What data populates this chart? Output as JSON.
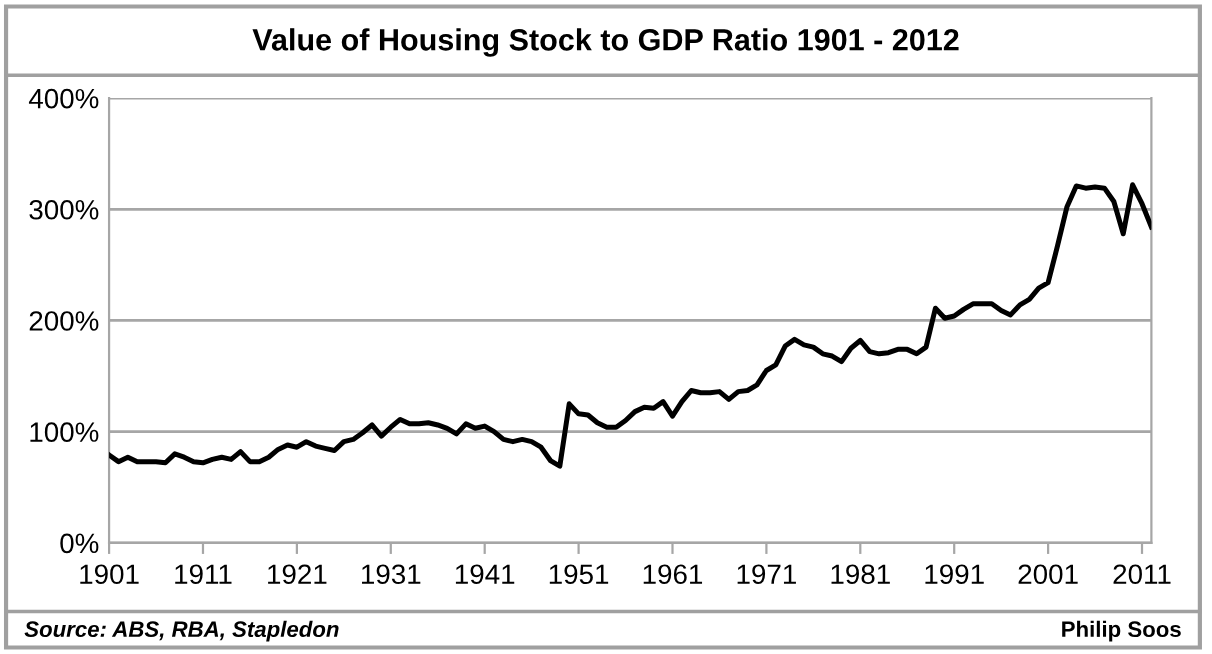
{
  "chart_data": {
    "type": "line",
    "title": "Value of Housing Stock to GDP Ratio 1901 - 2012",
    "x": [
      1901,
      1902,
      1903,
      1904,
      1905,
      1906,
      1907,
      1908,
      1909,
      1910,
      1911,
      1912,
      1913,
      1914,
      1915,
      1916,
      1917,
      1918,
      1919,
      1920,
      1921,
      1922,
      1923,
      1924,
      1925,
      1926,
      1927,
      1928,
      1929,
      1930,
      1931,
      1932,
      1933,
      1934,
      1935,
      1936,
      1937,
      1938,
      1939,
      1940,
      1941,
      1942,
      1943,
      1944,
      1945,
      1946,
      1947,
      1948,
      1949,
      1950,
      1951,
      1952,
      1953,
      1954,
      1955,
      1956,
      1957,
      1958,
      1959,
      1960,
      1961,
      1962,
      1963,
      1964,
      1965,
      1966,
      1967,
      1968,
      1969,
      1970,
      1971,
      1972,
      1973,
      1974,
      1975,
      1976,
      1977,
      1978,
      1979,
      1980,
      1981,
      1982,
      1983,
      1984,
      1985,
      1986,
      1987,
      1988,
      1989,
      1990,
      1991,
      1992,
      1993,
      1994,
      1995,
      1996,
      1997,
      1998,
      1999,
      2000,
      2001,
      2002,
      2003,
      2004,
      2005,
      2006,
      2007,
      2008,
      2009,
      2010,
      2011,
      2012
    ],
    "series": [
      {
        "color": "#000000",
        "values": [
          79,
          73,
          77,
          73,
          73,
          73,
          72,
          80,
          77,
          73,
          72,
          75,
          77,
          75,
          82,
          73,
          73,
          77,
          84,
          88,
          86,
          91,
          87,
          85,
          83,
          91,
          93,
          99,
          106,
          96,
          104,
          111,
          107,
          107,
          108,
          106,
          103,
          98,
          107,
          103,
          105,
          100,
          93,
          91,
          93,
          91,
          86,
          74,
          69,
          125,
          116,
          115,
          108,
          104,
          104,
          110,
          118,
          122,
          121,
          127,
          114,
          127,
          137,
          135,
          135,
          136,
          129,
          136,
          137,
          142,
          155,
          160,
          177,
          183,
          178,
          176,
          170,
          168,
          163,
          175,
          182,
          172,
          170,
          171,
          174,
          174,
          170,
          176,
          211,
          202,
          204,
          210,
          215,
          215,
          215,
          209,
          205,
          214,
          219,
          229,
          234,
          267,
          302,
          321,
          319,
          320,
          319,
          307,
          278,
          322,
          305,
          284
        ]
      }
    ],
    "xlim": [
      1901,
      2012
    ],
    "xticks": [
      1901,
      1911,
      1921,
      1931,
      1941,
      1951,
      1961,
      1971,
      1981,
      1991,
      2001,
      2011
    ],
    "ylim": [
      0,
      400
    ],
    "yticks": [
      {
        "value": 0,
        "label": "0%"
      },
      {
        "value": 100,
        "label": "100%"
      },
      {
        "value": 200,
        "label": "200%"
      },
      {
        "value": 300,
        "label": "300%"
      },
      {
        "value": 400,
        "label": "400%"
      }
    ],
    "grid": "y",
    "marker": "none",
    "line_style": "solid",
    "annotations": [
      "Source: ABS, RBA, Stapledon",
      "Philip Soos"
    ]
  }
}
